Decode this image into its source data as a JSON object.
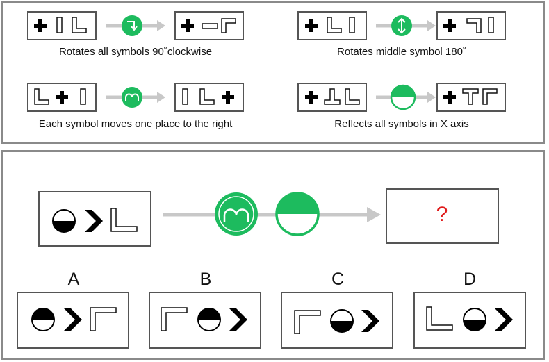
{
  "legend": {
    "rules": [
      {
        "caption": "Rotates all symbols 90˚clockwise",
        "operator_icon": "rotate-clockwise-icon"
      },
      {
        "caption": "Rotates middle symbol 180˚",
        "operator_icon": "flip-vertical-arrows-icon"
      },
      {
        "caption": "Each symbol moves one place to the right",
        "operator_icon": "shift-right-icon"
      },
      {
        "caption": "Reflects all symbols in X axis",
        "operator_icon": "half-circle-reflect-icon"
      }
    ]
  },
  "question": {
    "result_placeholder": "?",
    "operators": [
      "shift-right-icon",
      "half-circle-reflect-icon"
    ]
  },
  "options": [
    {
      "label": "A"
    },
    {
      "label": "B"
    },
    {
      "label": "C"
    },
    {
      "label": "D"
    }
  ],
  "colors": {
    "accent_green": "#1dbb5e",
    "question_red": "#e01b1b",
    "border_gray": "#8a8a8a",
    "arrow_gray": "#c8c8c8"
  }
}
